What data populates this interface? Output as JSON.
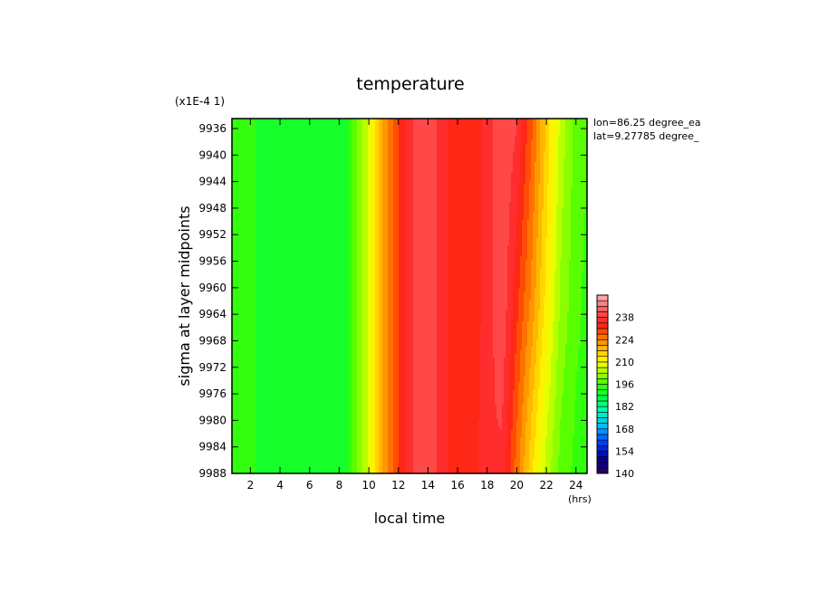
{
  "chart_data": {
    "type": "heatmap",
    "title": "temperature",
    "xlabel": "local time",
    "ylabel": "sigma at layer midpoints",
    "x_unit": "(hrs)",
    "y_scale_label": "(x1E-4 1)",
    "annotations": [
      "lon=86.25 degree_ea",
      "lat=9.27785 degree_"
    ],
    "xlim": [
      0.75,
      24.75
    ],
    "ylim_reversed": [
      9934.5,
      9988
    ],
    "x_ticks": [
      2,
      4,
      6,
      8,
      10,
      12,
      14,
      16,
      18,
      20,
      22,
      24
    ],
    "y_ticks": [
      9936,
      9940,
      9944,
      9948,
      9952,
      9956,
      9960,
      9964,
      9968,
      9972,
      9976,
      9980,
      9984,
      9988
    ],
    "colorbar": {
      "min": 140,
      "max": 252,
      "step": 3.5,
      "tick_labels": [
        "140",
        "154",
        "168",
        "182",
        "196",
        "210",
        "224",
        "238"
      ]
    },
    "series": [
      {
        "sigma": 9936,
        "x": [
          0.75,
          2,
          4,
          6,
          7,
          8,
          8.5,
          9,
          10,
          11,
          12,
          13,
          14,
          15,
          16,
          17,
          18,
          19,
          20,
          21,
          22,
          23,
          24,
          24.75
        ],
        "values": [
          196,
          193,
          190,
          189,
          189,
          190,
          192,
          198,
          207,
          222,
          231,
          238,
          241,
          236,
          232,
          232,
          236,
          241,
          238,
          228,
          216,
          205,
          198,
          196
        ]
      },
      {
        "sigma": 9962,
        "x": [
          0.75,
          2,
          4,
          6,
          7,
          8,
          8.5,
          9,
          10,
          11,
          12,
          13,
          14,
          15,
          16,
          17,
          18,
          19,
          20,
          21,
          22,
          23,
          24,
          24.75
        ],
        "values": [
          196,
          193,
          190,
          189,
          189,
          190,
          192,
          198,
          207,
          222,
          231,
          238,
          241,
          236,
          232,
          232,
          236,
          241,
          232,
          223,
          212,
          202,
          197,
          195
        ]
      },
      {
        "sigma": 9988,
        "x": [
          0.75,
          2,
          4,
          6,
          7,
          8,
          8.5,
          9,
          10,
          11,
          12,
          13,
          14,
          15,
          16,
          17,
          18,
          19,
          20,
          21,
          22,
          23,
          24,
          24.75
        ],
        "values": [
          196,
          193,
          190,
          189,
          189,
          190,
          192,
          198,
          207,
          222,
          231,
          238,
          241,
          236,
          232,
          232,
          238,
          237,
          226,
          214,
          205,
          198,
          195,
          194
        ]
      }
    ]
  }
}
